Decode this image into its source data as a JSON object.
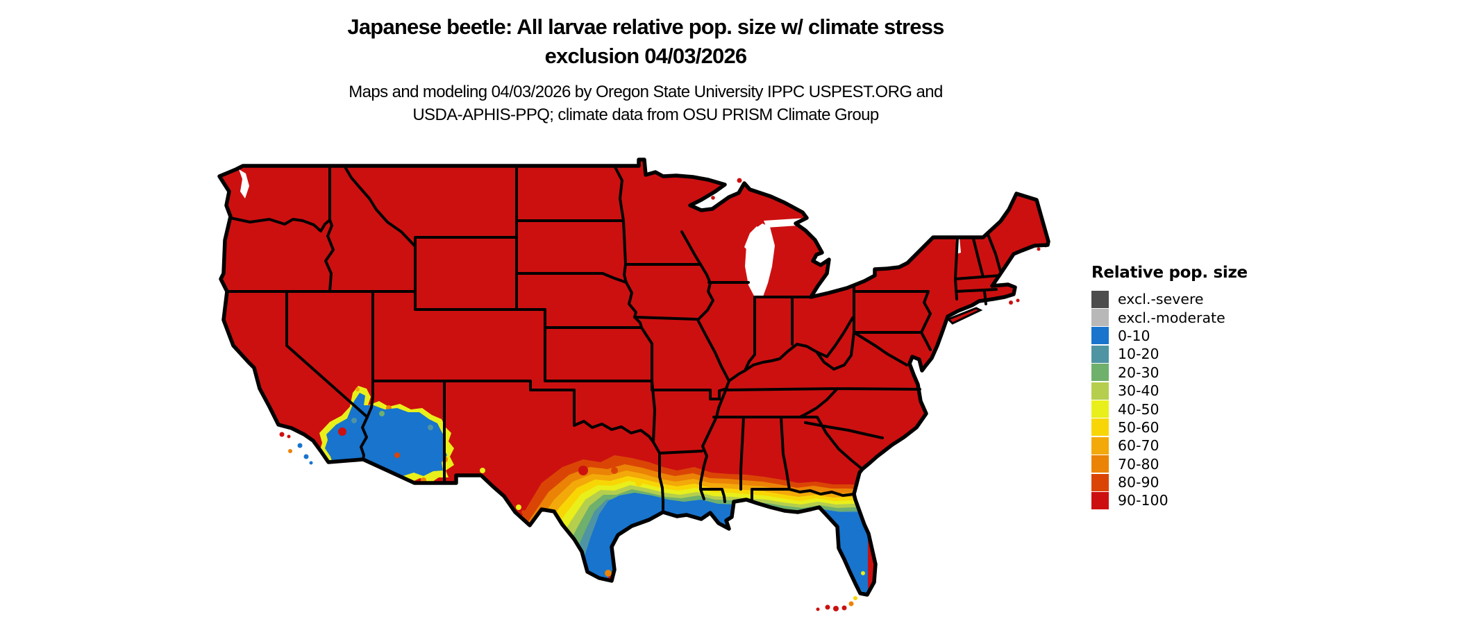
{
  "title": {
    "line1": "Japanese beetle: All larvae relative pop. size w/ climate stress",
    "line2": "exclusion 04/03/2026"
  },
  "subtitle": {
    "line1": "Maps and modeling 04/03/2026 by Oregon State University IPPC USPEST.ORG and",
    "line2": "USDA-APHIS-PPQ; climate data from OSU PRISM Climate Group"
  },
  "legend": {
    "title": "Relative pop. size",
    "items": [
      {
        "label": "excl.-severe",
        "color": "#4d4d4d"
      },
      {
        "label": "excl.-moderate",
        "color": "#b8b8b8"
      },
      {
        "label": "0-10",
        "color": "#1874cd"
      },
      {
        "label": "10-20",
        "color": "#4f94a3"
      },
      {
        "label": "20-30",
        "color": "#6fb06c"
      },
      {
        "label": "30-40",
        "color": "#b5ce4e"
      },
      {
        "label": "40-50",
        "color": "#e9ef1a"
      },
      {
        "label": "50-60",
        "color": "#f8d606"
      },
      {
        "label": "60-70",
        "color": "#f3a90a"
      },
      {
        "label": "70-80",
        "color": "#eb8306"
      },
      {
        "label": "80-90",
        "color": "#da4505"
      },
      {
        "label": "90-100",
        "color": "#cc1010"
      }
    ]
  },
  "map": {
    "type": "choropleth-raster",
    "region": "contiguous United States with state boundaries",
    "dominant_class": "90-100",
    "low_value_areas": [
      "southern Texas",
      "Gulf Coast of Louisiana, Mississippi and Alabama",
      "Florida peninsula",
      "southern Georgia transition band",
      "southeastern California deserts",
      "southwestern Arizona",
      "southern Nevada tip"
    ],
    "high_value_exceptions": [
      "Florida Keys shown 80-100",
      "islands in Lake Superior",
      "Channel Islands partly 80-100"
    ]
  }
}
